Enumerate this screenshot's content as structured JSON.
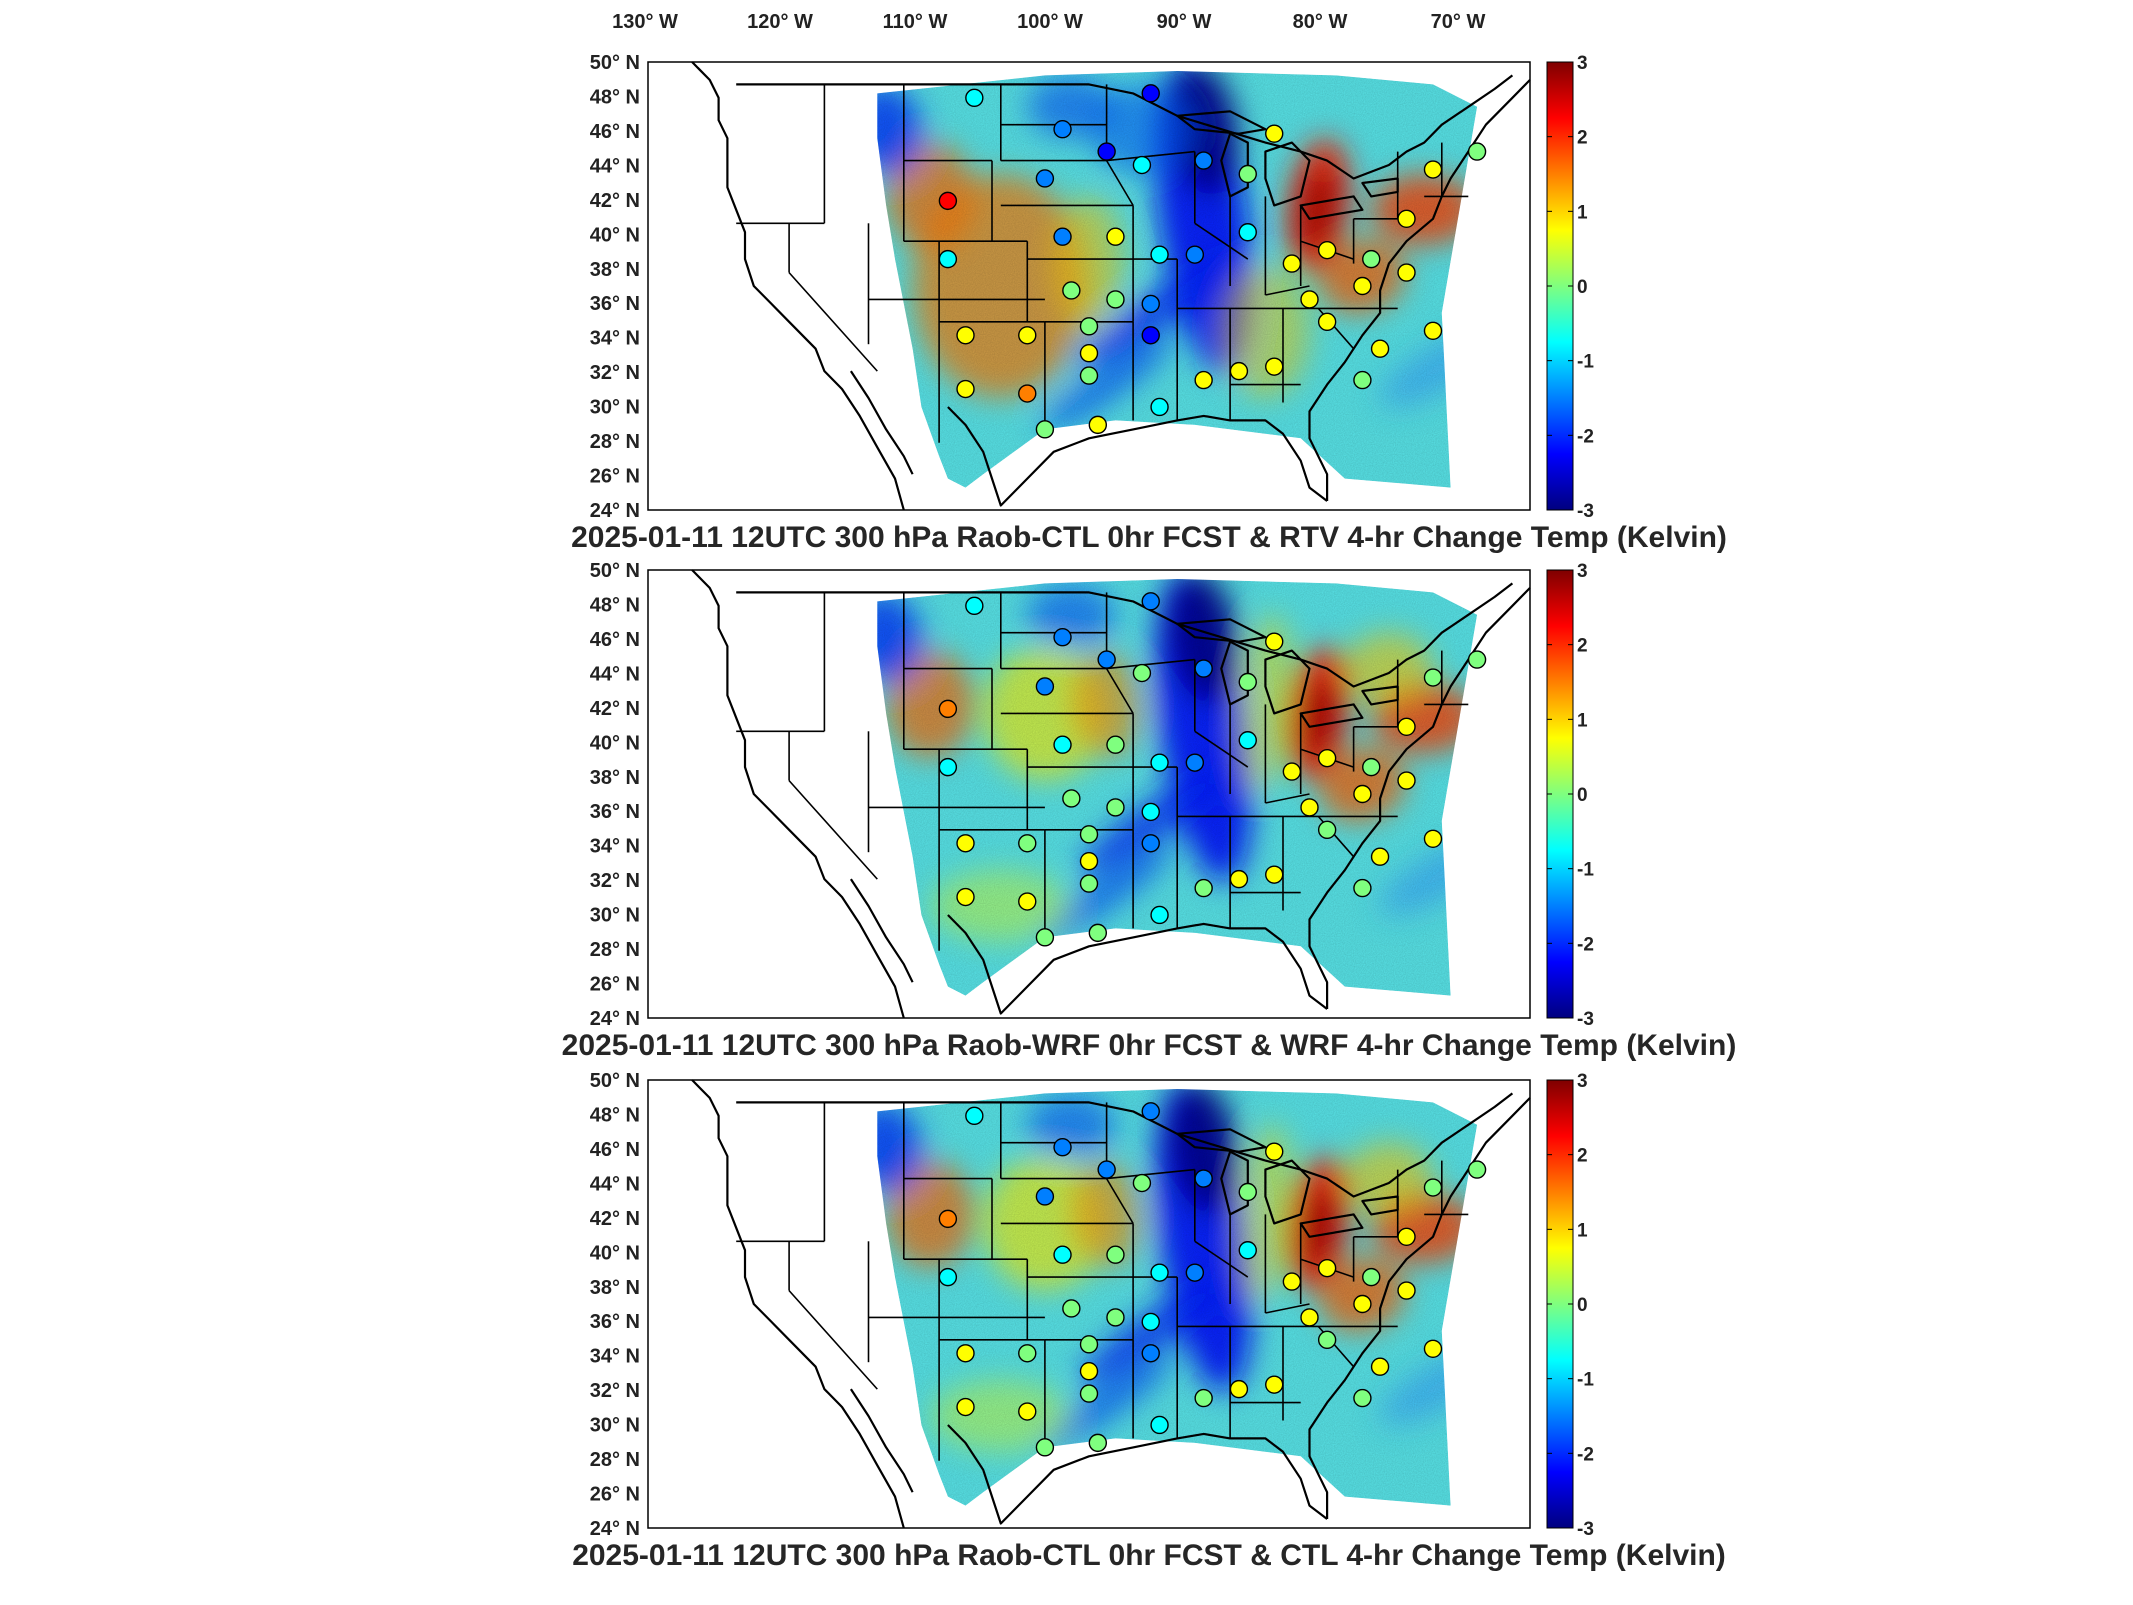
{
  "top_axis": {
    "longitude_ticks": [
      {
        "num": "130",
        "dir": "W"
      },
      {
        "num": "120",
        "dir": "W"
      },
      {
        "num": "110",
        "dir": "W"
      },
      {
        "num": "100",
        "dir": "W"
      },
      {
        "num": "90",
        "dir": "W"
      },
      {
        "num": "80",
        "dir": "W"
      },
      {
        "num": "70",
        "dir": "W"
      }
    ]
  },
  "latitude_ticks": [
    {
      "num": "50",
      "dir": "N"
    },
    {
      "num": "48",
      "dir": "N"
    },
    {
      "num": "46",
      "dir": "N"
    },
    {
      "num": "44",
      "dir": "N"
    },
    {
      "num": "42",
      "dir": "N"
    },
    {
      "num": "40",
      "dir": "N"
    },
    {
      "num": "38",
      "dir": "N"
    },
    {
      "num": "36",
      "dir": "N"
    },
    {
      "num": "34",
      "dir": "N"
    },
    {
      "num": "32",
      "dir": "N"
    },
    {
      "num": "30",
      "dir": "N"
    },
    {
      "num": "28",
      "dir": "N"
    },
    {
      "num": "26",
      "dir": "N"
    },
    {
      "num": "24",
      "dir": "N"
    }
  ],
  "colorbar": {
    "ticks": [
      "3",
      "2",
      "1",
      "0",
      "-1",
      "-2",
      "-3"
    ],
    "min": -3,
    "max": 3,
    "colormap": [
      "#00007f",
      "#0000ff",
      "#007fff",
      "#00ffff",
      "#7fff7f",
      "#ffff00",
      "#ff7f00",
      "#ff0000",
      "#7f0000"
    ]
  },
  "panels": [
    {
      "title": "2025-01-11 12UTC 300 hPa Raob-CTL 0hr FCST & RTV 4-hr Change Temp (Kelvin)",
      "variant": "rtv"
    },
    {
      "title": "2025-01-11 12UTC 300 hPa Raob-WRF 0hr FCST & WRF 4-hr Change Temp (Kelvin)",
      "variant": "wrf"
    },
    {
      "title": "2025-01-11 12UTC 300 hPa Raob-CTL 0hr FCST & CTL 4-hr Change Temp (Kelvin)",
      "variant": "ctl"
    }
  ],
  "colors": {
    "frame": "#000000",
    "background": "#ffffff",
    "text": "#262626"
  }
}
